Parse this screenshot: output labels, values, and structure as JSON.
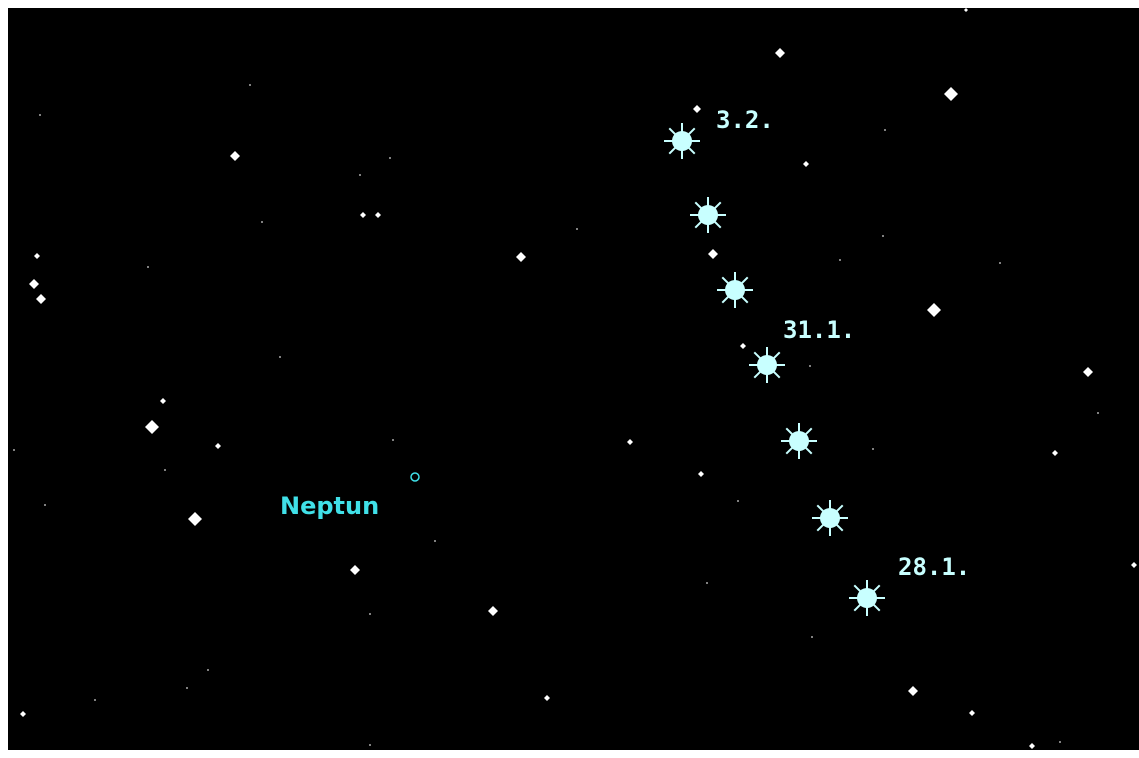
{
  "planet": {
    "label": "Neptun"
  },
  "track_labels": [
    "3.2.",
    "31.1.",
    "28.1."
  ]
}
